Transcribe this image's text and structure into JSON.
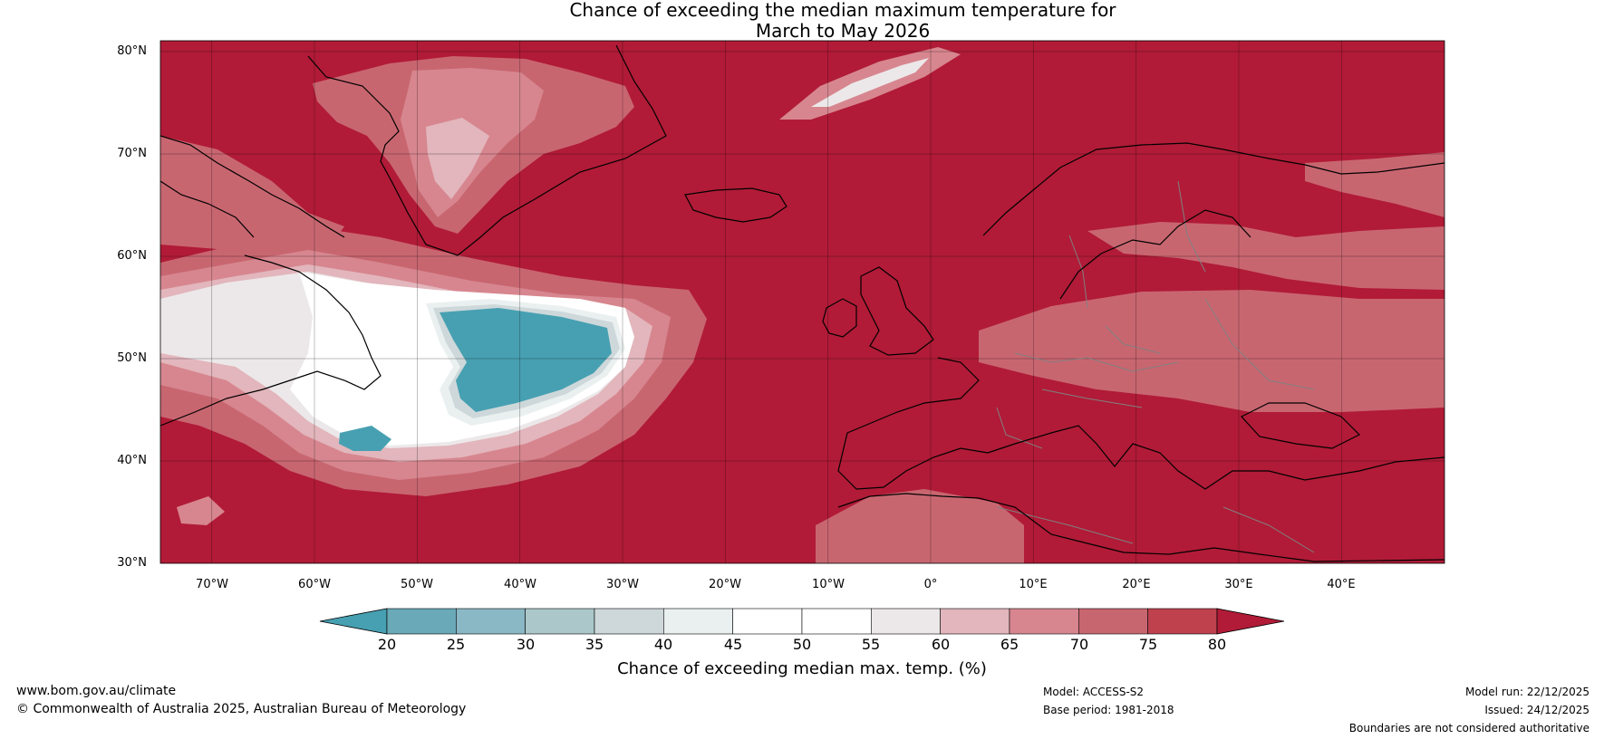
{
  "title": {
    "line1": "Chance of exceeding the median maximum temperature for",
    "line2": "March to May 2026"
  },
  "map": {
    "lat_labels": [
      "80°N",
      "70°N",
      "60°N",
      "50°N",
      "40°N",
      "30°N"
    ],
    "lon_labels": [
      "70°W",
      "60°W",
      "50°W",
      "40°W",
      "30°W",
      "20°W",
      "10°W",
      "0°",
      "10°E",
      "20°E",
      "30°E",
      "40°E"
    ],
    "extent": {
      "lon_min": -75,
      "lon_max": 50,
      "lat_min": 30,
      "lat_max": 81
    },
    "background_color": "#b11b37"
  },
  "colorbar": {
    "ticks": [
      "20",
      "25",
      "30",
      "35",
      "40",
      "45",
      "50",
      "55",
      "60",
      "65",
      "70",
      "75",
      "80"
    ],
    "colors": [
      "#47a0b2",
      "#6aa9b7",
      "#8ab8c4",
      "#abc7ca",
      "#ced8da",
      "#eaf0f0",
      "#ffffff",
      "#ffffff",
      "#ece8ea",
      "#e2b6bc",
      "#d7868f",
      "#c86670",
      "#bf414e",
      "#b11b37"
    ],
    "label": "Chance of exceeding median max. temp. (%)"
  },
  "footer": {
    "website": "www.bom.gov.au/climate",
    "copyright": "© Commonwealth of Australia 2025, Australian Bureau of Meteorology",
    "model": "Model: ACCESS-S2",
    "base_period": "Base period: 1981-2018",
    "model_run": "Model run: 22/12/2025",
    "issued": "Issued: 24/12/2025",
    "disclaimer": "Boundaries are not considered authoritative"
  }
}
